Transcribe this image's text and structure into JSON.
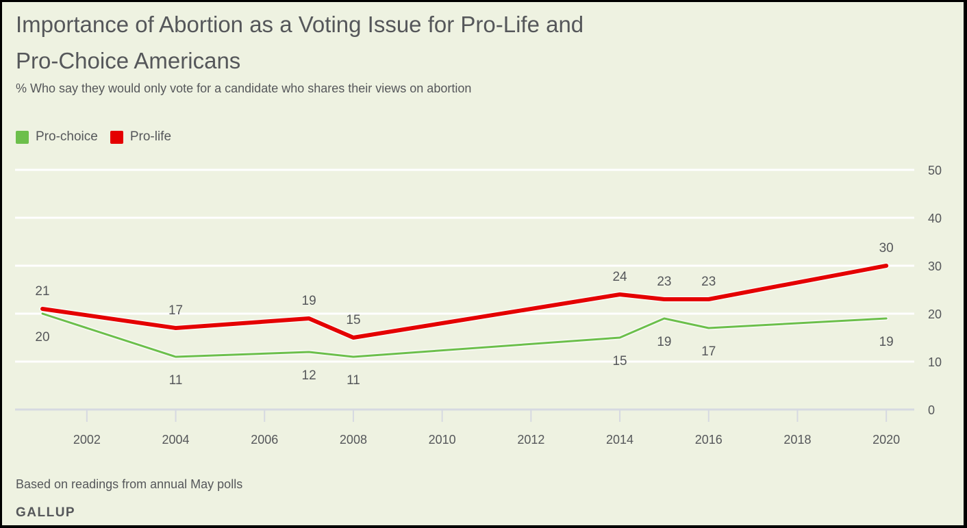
{
  "chart_data": {
    "type": "line",
    "title": "Importance of Abortion as a Voting Issue for Pro-Life and Pro-Choice Americans",
    "title_lines": [
      "Importance of Abortion as a Voting Issue for Pro-Life and",
      "Pro-Choice Americans"
    ],
    "subtitle": "% Who say they would only vote for a candidate who shares their views on abortion",
    "xlabel": "",
    "ylabel": "",
    "x": [
      2001,
      2004,
      2007,
      2008,
      2014,
      2015,
      2016,
      2020
    ],
    "xlim": [
      2001,
      2021
    ],
    "ylim": [
      0,
      50
    ],
    "x_ticks": [
      2002,
      2004,
      2006,
      2008,
      2010,
      2012,
      2014,
      2016,
      2018,
      2020
    ],
    "x_tick_labels": [
      "2002",
      "2004",
      "2006",
      "2008",
      "2010",
      "2012",
      "2014",
      "2016",
      "2018",
      "2020"
    ],
    "y_ticks": [
      0,
      10,
      20,
      30,
      40,
      50
    ],
    "y_tick_labels": [
      "0",
      "10",
      "20",
      "30",
      "40",
      "50"
    ],
    "y_axis_side": "right",
    "grid": true,
    "legend_position": "top-left",
    "series": [
      {
        "name": "Pro-choice",
        "color": "#6cbf4b",
        "values": [
          20,
          11,
          12,
          11,
          15,
          19,
          17,
          19
        ],
        "label_placement": "below"
      },
      {
        "name": "Pro-life",
        "color": "#e40000",
        "values": [
          21,
          17,
          19,
          15,
          24,
          23,
          23,
          30
        ],
        "label_placement": "above"
      }
    ],
    "note": "Based on readings from annual May polls",
    "source": "GALLUP"
  }
}
